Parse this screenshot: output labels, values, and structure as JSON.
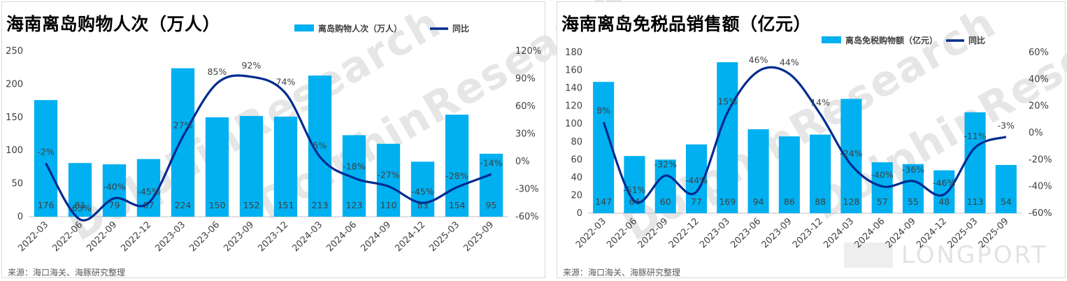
{
  "charts": [
    {
      "title": "海南离岛购物人次（万人）",
      "source": "来源：海口海关、海豚研究整理",
      "watermark": "DolphinResearch",
      "chart_data": {
        "type": "bar",
        "categories": [
          "2022-03",
          "2022-06",
          "2022-09",
          "2022-12",
          "2023-03",
          "2023-06",
          "2023-09",
          "2023-12",
          "2024-03",
          "2024-06",
          "2024-09",
          "2024-12",
          "2025-03",
          "2025-09"
        ],
        "series": [
          {
            "name": "离岛购物人次（万人）",
            "type": "bar",
            "axis": "left",
            "values": [
              176,
              81,
              79,
              87,
              224,
              150,
              152,
              151,
              213,
              123,
              110,
              83,
              154,
              95
            ],
            "labels": [
              "176",
              "81",
              "79",
              "87",
              "224",
              "150",
              "152",
              "151",
              "213",
              "123",
              "110",
              "83",
              "154",
              "95"
            ]
          },
          {
            "name": "同比",
            "type": "line",
            "axis": "right",
            "values": [
              -2,
              -63,
              -40,
              -45,
              27,
              85,
              92,
              74,
              5,
              -18,
              -27,
              -45,
              -28,
              -14
            ],
            "labels": [
              "-2%",
              "-63%",
              "-40%",
              "-45%",
              "27%",
              "85%",
              "92%",
              "74%",
              "5%",
              "-18%",
              "-27%",
              "-45%",
              "-28%",
              "-14%"
            ]
          }
        ],
        "y_left": {
          "min": 0,
          "max": 250,
          "ticks": [
            "0",
            "50",
            "100",
            "150",
            "200",
            "250"
          ]
        },
        "y_right": {
          "min": -60,
          "max": 120,
          "ticks": [
            "-60%",
            "-30%",
            "0%",
            "30%",
            "60%",
            "90%",
            "120%"
          ]
        },
        "legend_position": "top-right",
        "colors": {
          "bar": "#00b0f0",
          "line": "#002b8f"
        }
      }
    },
    {
      "title": "海南离岛免税品销售额（亿元）",
      "source": "来源：海口海关、海豚研究整理",
      "watermark": "DolphinResearch",
      "brand_watermark": "LONGPORT",
      "chart_data": {
        "type": "bar",
        "categories": [
          "2022-03",
          "2022-06",
          "2022-09",
          "2022-12",
          "2023-03",
          "2023-06",
          "2023-09",
          "2023-12",
          "2024-03",
          "2024-06",
          "2024-09",
          "2024-12",
          "2025-03",
          "2025-09"
        ],
        "series": [
          {
            "name": "离岛免税购物额（亿元）",
            "type": "bar",
            "axis": "left",
            "values": [
              147,
              64,
              60,
              77,
              169,
              94,
              86,
              88,
              128,
              57,
              55,
              48,
              113,
              54
            ],
            "labels": [
              "147",
              "64",
              "60",
              "77",
              "169",
              "94",
              "86",
              "88",
              "128",
              "57",
              "55",
              "48",
              "113",
              "54"
            ]
          },
          {
            "name": "同比",
            "type": "line",
            "axis": "right",
            "values": [
              8,
              -51,
              -32,
              -44,
              15,
              46,
              44,
              14,
              -24,
              -40,
              -36,
              -46,
              -11,
              -3
            ],
            "labels": [
              "8%",
              "-51%",
              "-32%",
              "-44%",
              "15%",
              "46%",
              "44%",
              "14%",
              "-24%",
              "-40%",
              "-36%",
              "-46%",
              "-11%",
              "-3%"
            ]
          }
        ],
        "y_left": {
          "min": 0,
          "max": 180,
          "ticks": [
            "0",
            "20",
            "40",
            "60",
            "80",
            "100",
            "120",
            "140",
            "160",
            "180"
          ]
        },
        "y_right": {
          "min": -60,
          "max": 60,
          "ticks": [
            "-60%",
            "-40%",
            "-20%",
            "0%",
            "20%",
            "40%",
            "60%"
          ]
        },
        "legend_position": "top-right",
        "colors": {
          "bar": "#00b0f0",
          "line": "#002b8f"
        }
      }
    }
  ]
}
